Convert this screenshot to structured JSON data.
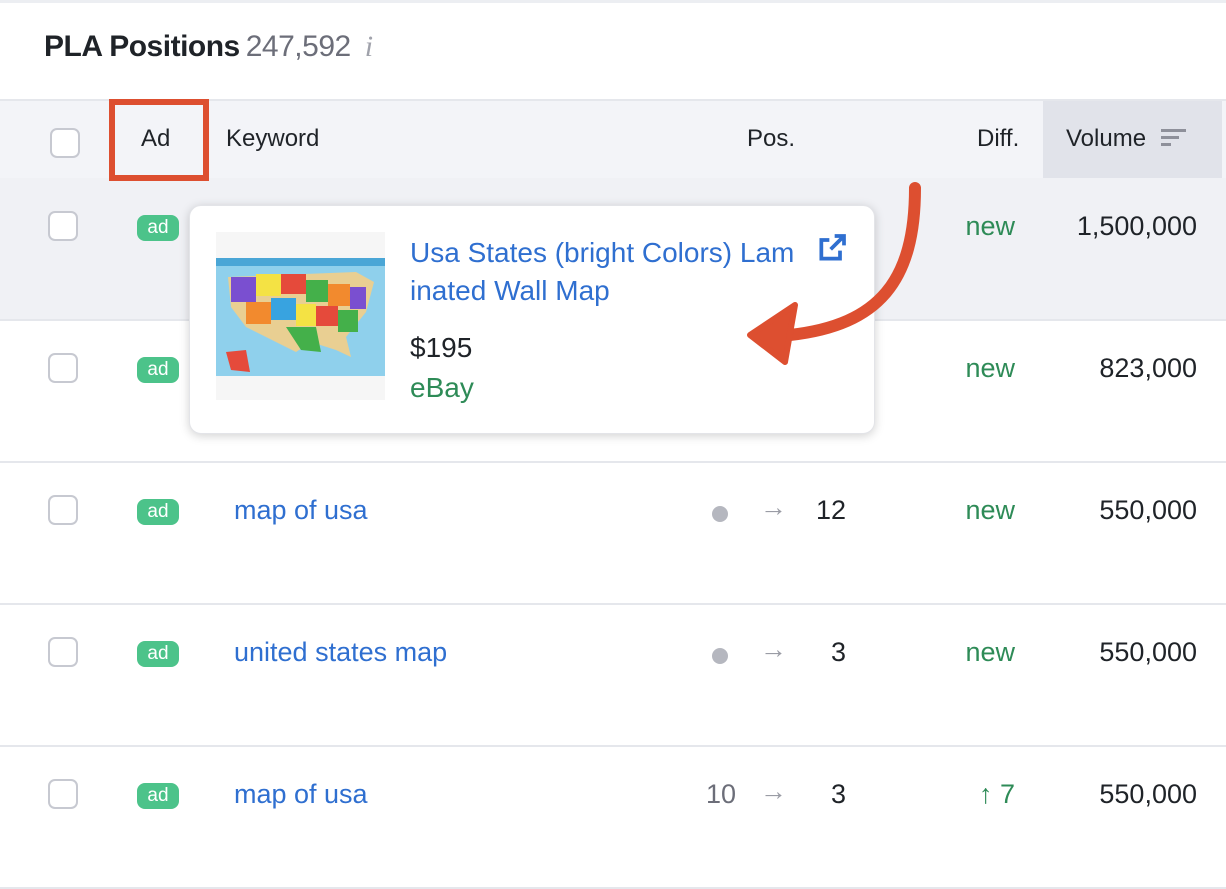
{
  "title": "PLA Positions",
  "count": "247,592",
  "info_icon": "i",
  "columns": {
    "ad": "Ad",
    "keyword": "Keyword",
    "pos": "Pos.",
    "diff": "Diff.",
    "volume": "Volume"
  },
  "rows": [
    {
      "badge": "ad",
      "keyword": "",
      "prev": "",
      "pos": "",
      "diff": "new",
      "volume": "1,500,000"
    },
    {
      "badge": "ad",
      "keyword": "",
      "prev": "",
      "pos": "",
      "diff": "new",
      "volume": "823,000"
    },
    {
      "badge": "ad",
      "keyword": "map of usa",
      "prev": "dot",
      "pos": "12",
      "diff": "new",
      "volume": "550,000"
    },
    {
      "badge": "ad",
      "keyword": "united states map",
      "prev": "dot",
      "pos": "3",
      "diff": "new",
      "volume": "550,000"
    },
    {
      "badge": "ad",
      "keyword": "map of usa",
      "prev": "10",
      "pos": "3",
      "diff": "↑ 7",
      "volume": "550,000"
    }
  ],
  "popup": {
    "title": "Usa States (bright Colors) Laminated Wall Map",
    "price": "$195",
    "store": "eBay"
  },
  "colors": {
    "accent": "#2f6fd0",
    "green": "#2e8b57",
    "badge": "#4cc38a",
    "highlight": "#dd4f30"
  }
}
